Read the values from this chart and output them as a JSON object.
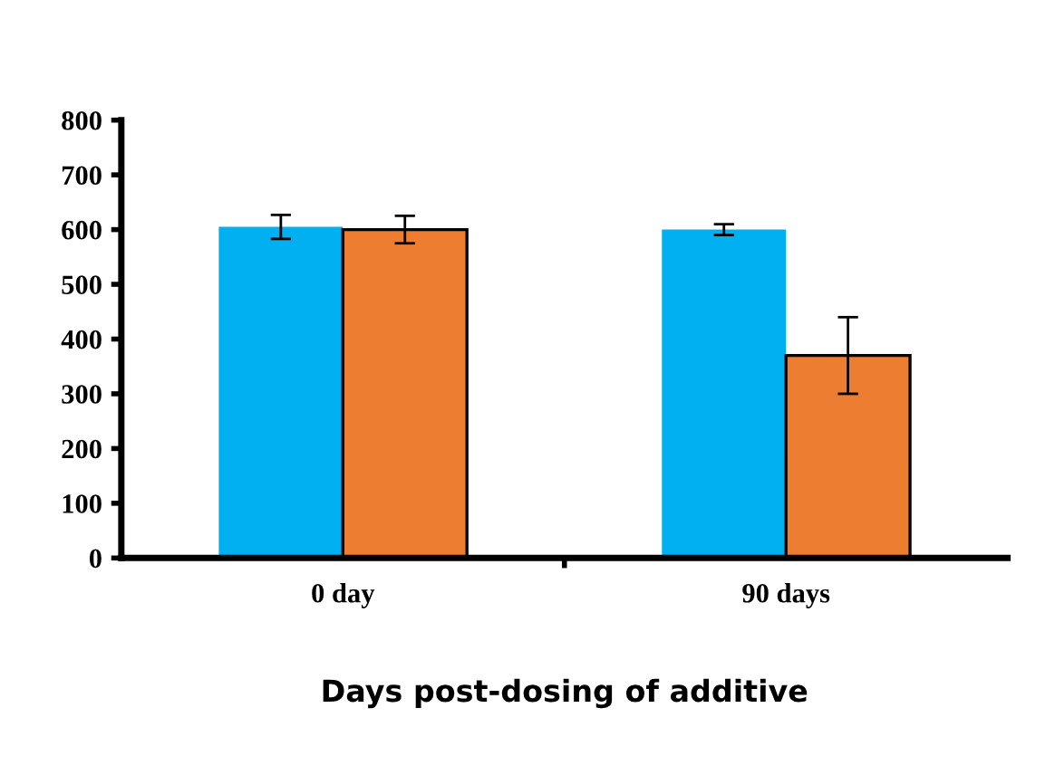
{
  "chart_data": {
    "type": "bar",
    "xlabel": "Days post-dosing of additive",
    "categories": [
      "0 day",
      "90 days"
    ],
    "series": [
      {
        "color": "#00b0f0",
        "values": [
          605,
          600
        ],
        "errors": [
          22,
          10
        ]
      },
      {
        "color": "#ed7d31",
        "values": [
          600,
          370
        ],
        "errors": [
          25,
          70
        ]
      }
    ],
    "ylim": [
      0,
      800
    ],
    "yticks": [
      0,
      100,
      200,
      300,
      400,
      500,
      600,
      700,
      800
    ],
    "grid": false,
    "legend": false
  }
}
